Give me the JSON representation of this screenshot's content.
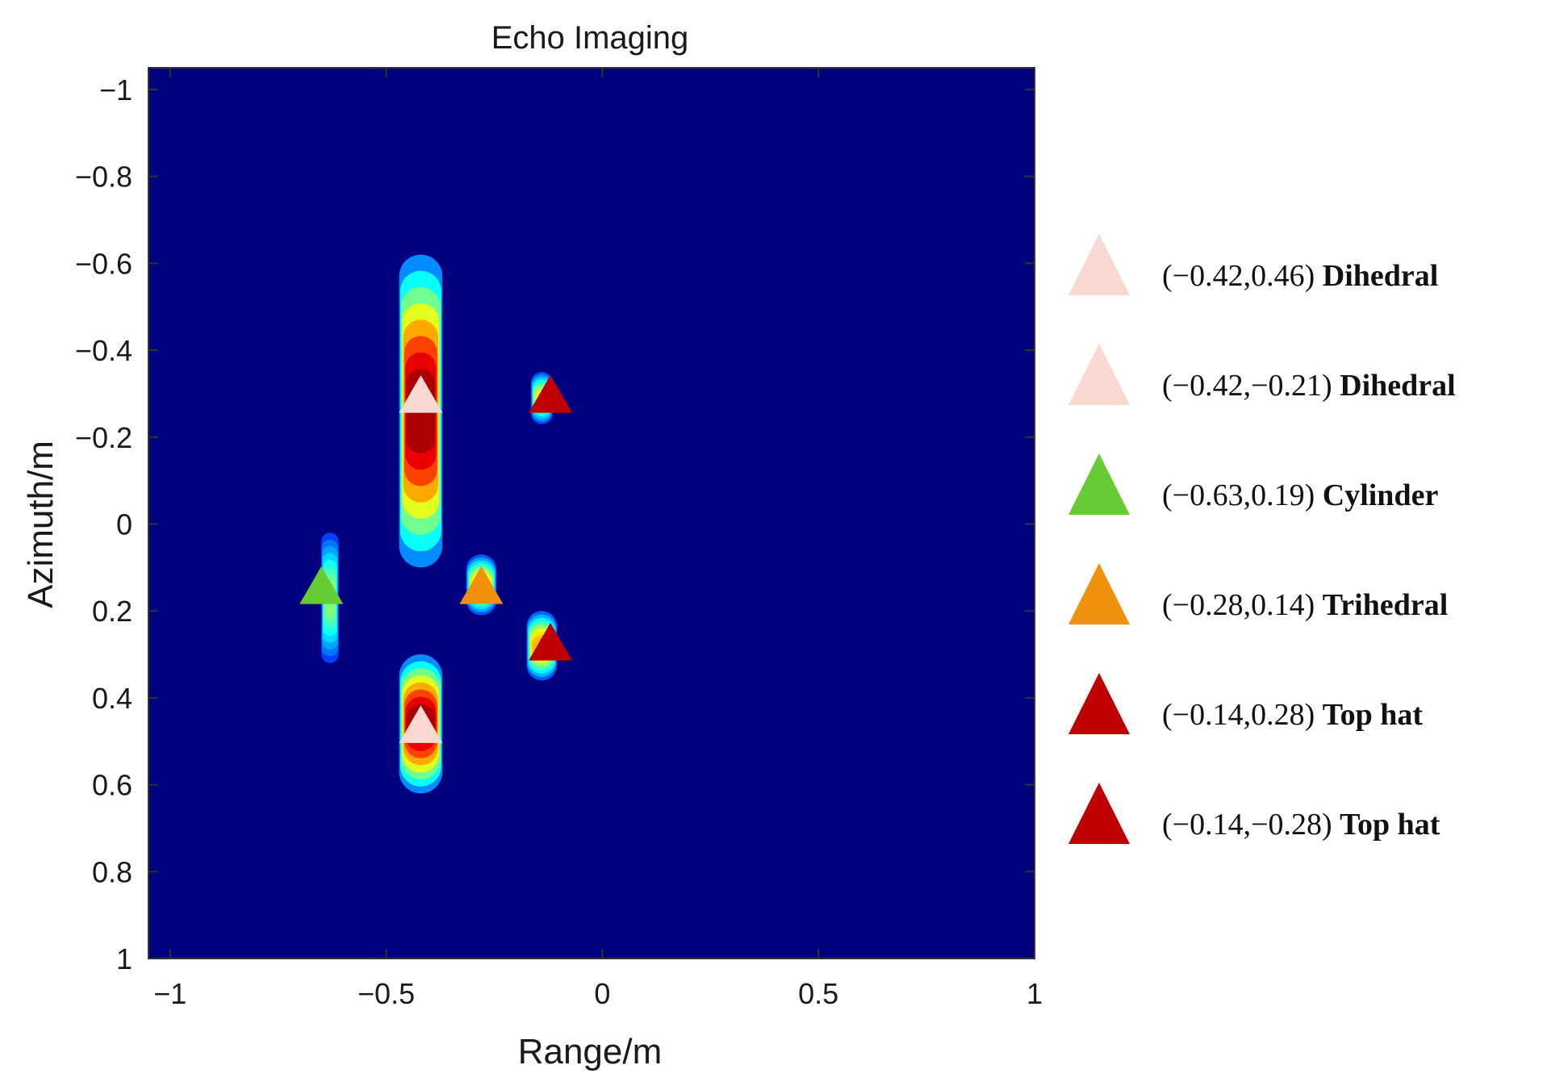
{
  "chart_data": {
    "type": "heatmap",
    "title": "Echo Imaging",
    "xlabel": "Range/m",
    "ylabel": "Azimuth/m",
    "xlim": [
      -1.05,
      1.0
    ],
    "ylim": [
      -1.05,
      1.0
    ],
    "y_axis_reversed": true,
    "x_ticks": [
      -1,
      -0.5,
      0,
      0.5,
      1
    ],
    "x_tick_labels": [
      "−1",
      "−0.5",
      "0",
      "0.5",
      "1"
    ],
    "y_ticks": [
      -1,
      -0.8,
      -0.6,
      -0.4,
      -0.2,
      0,
      0.2,
      0.4,
      0.6,
      0.8,
      1
    ],
    "y_tick_labels": [
      "−1",
      "−0.8",
      "−0.6",
      "−0.4",
      "−0.2",
      "0",
      "0.2",
      "0.4",
      "0.6",
      "0.8",
      "1"
    ],
    "colormap": "jet",
    "background_color": "#00007f",
    "blobs": [
      {
        "x": -0.42,
        "y": -0.26,
        "half_width": 0.05,
        "half_height": 0.36,
        "peak": 1.0
      },
      {
        "x": -0.42,
        "y": 0.46,
        "half_width": 0.05,
        "half_height": 0.16,
        "peak": 1.0
      },
      {
        "x": -0.63,
        "y": 0.17,
        "half_width": 0.02,
        "half_height": 0.15,
        "peak": 0.45
      },
      {
        "x": -0.28,
        "y": 0.14,
        "half_width": 0.035,
        "half_height": 0.07,
        "peak": 0.62
      },
      {
        "x": -0.14,
        "y": -0.29,
        "half_width": 0.025,
        "half_height": 0.06,
        "peak": 0.55
      },
      {
        "x": -0.14,
        "y": 0.28,
        "half_width": 0.035,
        "half_height": 0.08,
        "peak": 0.68
      }
    ],
    "markers": [
      {
        "x": -0.42,
        "y": -0.29,
        "color": "#f8d8d0"
      },
      {
        "x": -0.42,
        "y": 0.47,
        "color": "#f8d8d0"
      },
      {
        "x": -0.65,
        "y": 0.15,
        "color": "#66cc33"
      },
      {
        "x": -0.28,
        "y": 0.15,
        "color": "#f0900c"
      },
      {
        "x": -0.12,
        "y": -0.29,
        "color": "#c00000"
      },
      {
        "x": -0.12,
        "y": 0.28,
        "color": "#c00000"
      }
    ],
    "legend": [
      {
        "coords": "(−0.42,0.46)",
        "name": "Dihedral",
        "color": "#f8d8d0"
      },
      {
        "coords": "(−0.42,−0.21)",
        "name": "Dihedral",
        "color": "#f8d8d0"
      },
      {
        "coords": "(−0.63,0.19)",
        "name": "Cylinder",
        "color": "#66cc33"
      },
      {
        "coords": "(−0.28,0.14)",
        "name": "Trihedral",
        "color": "#f0900c"
      },
      {
        "coords": "(−0.14,0.28)",
        "name": "Top hat",
        "color": "#c00000"
      },
      {
        "coords": "(−0.14,−0.28)",
        "name": "Top hat",
        "color": "#c00000"
      }
    ],
    "legend_position": "right"
  }
}
